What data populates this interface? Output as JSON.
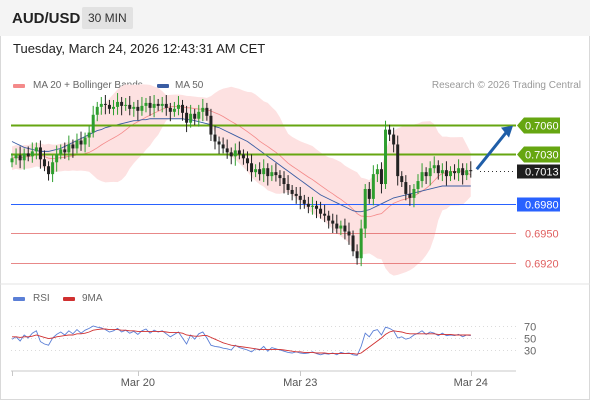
{
  "header": {
    "symbol": "AUD/USD",
    "timeframe": "30 MIN"
  },
  "timestamp": "Tuesday, March 24, 2026 12:43:31 AM CET",
  "legend": {
    "bb_label": "MA 20 + Bollinger Bands",
    "ma50_label": "MA 50",
    "rsi_label": "RSI",
    "rsi_ma_label": "9MA"
  },
  "credit": "Research © 2026 Trading Central",
  "colors": {
    "bb": "#f48a8a",
    "bb_fill": "#fde1e1",
    "ma50": "#3a5da3",
    "bull": "#2e9e2e",
    "bear": "#222222",
    "green_level": "#66a611",
    "blue_level": "#2962ff",
    "red_level": "#e06060",
    "arrow": "#1f5ea8",
    "rsi": "#5b7fd6",
    "rsi_ma": "#d03030"
  },
  "chart_data": {
    "type": "candlestick",
    "x_tick_labels": [
      "Mar 20",
      "Mar 23",
      "Mar 24"
    ],
    "ylim": [
      0.6905,
      0.709
    ],
    "levels": [
      {
        "value": 0.706,
        "label": "0.7060",
        "kind": "resistance"
      },
      {
        "value": 0.703,
        "label": "0.7030",
        "kind": "resistance"
      },
      {
        "value": 0.7013,
        "label": "0.7013",
        "kind": "last"
      },
      {
        "value": 0.698,
        "label": "0.6980",
        "kind": "pivot"
      },
      {
        "value": 0.695,
        "label": "0.6950",
        "kind": "support"
      },
      {
        "value": 0.692,
        "label": "0.6920",
        "kind": "support"
      }
    ],
    "close": [
      0.7026,
      0.7029,
      0.7024,
      0.7031,
      0.7028,
      0.7033,
      0.7037,
      0.7025,
      0.7018,
      0.701,
      0.7022,
      0.703,
      0.7035,
      0.7032,
      0.704,
      0.7036,
      0.7044,
      0.704,
      0.7047,
      0.7052,
      0.707,
      0.7078,
      0.7081,
      0.708,
      0.7076,
      0.7078,
      0.7083,
      0.7079,
      0.708,
      0.7076,
      0.7078,
      0.7074,
      0.7079,
      0.7082,
      0.7077,
      0.7081,
      0.7079,
      0.7081,
      0.7077,
      0.7073,
      0.7076,
      0.708,
      0.7072,
      0.7062,
      0.7071,
      0.7066,
      0.7073,
      0.7077,
      0.7069,
      0.705,
      0.7043,
      0.704,
      0.7036,
      0.7032,
      0.7028,
      0.7034,
      0.703,
      0.7026,
      0.7021,
      0.7012,
      0.7015,
      0.701,
      0.7016,
      0.7008,
      0.7012,
      0.7009,
      0.7006,
      0.7,
      0.6994,
      0.699,
      0.6988,
      0.6984,
      0.698,
      0.6977,
      0.6978,
      0.6975,
      0.697,
      0.6968,
      0.6963,
      0.696,
      0.6955,
      0.6958,
      0.6952,
      0.6948,
      0.6932,
      0.6925,
      0.6955,
      0.6995,
      0.6985,
      0.701,
      0.7015,
      0.7,
      0.7055,
      0.705,
      0.704,
      0.7008,
      0.7002,
      0.699,
      0.6986,
      0.6995,
      0.7003,
      0.7012,
      0.7008,
      0.7016,
      0.7019,
      0.7011,
      0.7014,
      0.7008,
      0.7013,
      0.7011,
      0.7016,
      0.7009,
      0.7014,
      0.7013
    ],
    "ma50": [
      0.7043,
      0.7041,
      0.7039,
      0.7037,
      0.7036,
      0.7035,
      0.7034,
      0.7033,
      0.7033,
      0.7033,
      0.7034,
      0.7035,
      0.7036,
      0.7038,
      0.704,
      0.7042,
      0.7044,
      0.7046,
      0.7048,
      0.705,
      0.7052,
      0.7054,
      0.7055,
      0.7057,
      0.7058,
      0.7059,
      0.706,
      0.7061,
      0.7062,
      0.7063,
      0.7064,
      0.7064,
      0.7065,
      0.7065,
      0.7066,
      0.7066,
      0.7066,
      0.7066,
      0.7066,
      0.7066,
      0.7066,
      0.7066,
      0.7066,
      0.7065,
      0.7065,
      0.7064,
      0.7063,
      0.7062,
      0.7061,
      0.706,
      0.7058,
      0.7057,
      0.7055,
      0.7053,
      0.7051,
      0.7049,
      0.7047,
      0.7045,
      0.7043,
      0.704,
      0.7037,
      0.7034,
      0.7031,
      0.7028,
      0.7025,
      0.7022,
      0.7019,
      0.7016,
      0.7013,
      0.701,
      0.7007,
      0.7004,
      0.7001,
      0.6998,
      0.6995,
      0.6992,
      0.6989,
      0.6987,
      0.6985,
      0.6983,
      0.6981,
      0.6979,
      0.6977,
      0.6975,
      0.6973,
      0.6972,
      0.6972,
      0.6973,
      0.6974,
      0.6976,
      0.6978,
      0.698,
      0.6982,
      0.6984,
      0.6986,
      0.6987,
      0.6988,
      0.6989,
      0.699,
      0.6991,
      0.6992,
      0.6993,
      0.6994,
      0.6995,
      0.6996,
      0.6997,
      0.6998,
      0.6998,
      0.6998,
      0.6998,
      0.6998,
      0.6998,
      0.6998,
      0.6998
    ],
    "rsi_ylim": [
      20,
      80
    ],
    "rsi_ticks": [
      70,
      50,
      30
    ],
    "rsi_tick_labels": [
      "70",
      "50",
      "30"
    ],
    "rsi": [
      48,
      52,
      45,
      55,
      50,
      58,
      62,
      44,
      40,
      38,
      50,
      56,
      60,
      55,
      62,
      57,
      64,
      58,
      63,
      66,
      70,
      68,
      67,
      64,
      60,
      62,
      66,
      60,
      63,
      58,
      61,
      56,
      62,
      65,
      58,
      63,
      60,
      62,
      57,
      52,
      56,
      60,
      50,
      40,
      55,
      48,
      57,
      60,
      50,
      38,
      36,
      35,
      33,
      32,
      30,
      38,
      34,
      32,
      30,
      27,
      32,
      30,
      36,
      28,
      34,
      32,
      30,
      28,
      26,
      25,
      27,
      25,
      24,
      25,
      27,
      24,
      22,
      24,
      23,
      25,
      22,
      26,
      24,
      25,
      22,
      21,
      36,
      58,
      52,
      62,
      64,
      55,
      68,
      66,
      62,
      50,
      52,
      48,
      50,
      55,
      58,
      62,
      56,
      60,
      58,
      54,
      58,
      54,
      55,
      54,
      56,
      52,
      55,
      54
    ],
    "rsi_ma": [
      52,
      52,
      51,
      52,
      52,
      53,
      55,
      53,
      51,
      49,
      50,
      52,
      53,
      54,
      55,
      55,
      57,
      57,
      58,
      60,
      63,
      64,
      65,
      65,
      64,
      64,
      64,
      63,
      63,
      62,
      62,
      61,
      61,
      61,
      61,
      61,
      61,
      61,
      60,
      59,
      59,
      59,
      58,
      55,
      54,
      53,
      53,
      54,
      54,
      51,
      48,
      45,
      42,
      40,
      38,
      37,
      36,
      35,
      34,
      33,
      32,
      31,
      31,
      31,
      31,
      31,
      31,
      30,
      29,
      28,
      27,
      27,
      26,
      26,
      26,
      25,
      25,
      25,
      24,
      24,
      24,
      24,
      24,
      24,
      24,
      23,
      25,
      30,
      35,
      40,
      45,
      50,
      56,
      60,
      62,
      61,
      60,
      58,
      57,
      57,
      57,
      57,
      57,
      57,
      57,
      56,
      56,
      56,
      56,
      55,
      55,
      55,
      55,
      55
    ]
  }
}
